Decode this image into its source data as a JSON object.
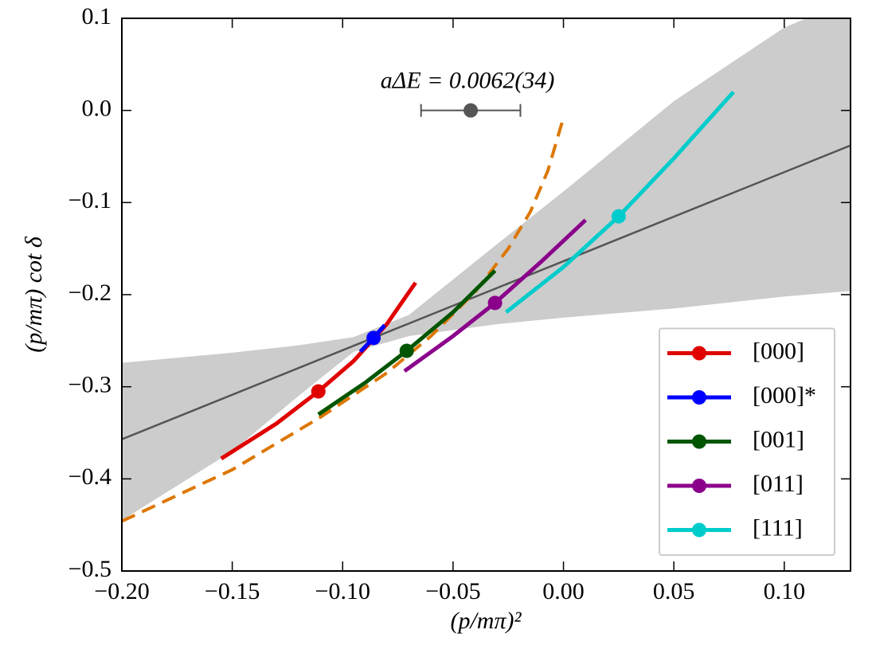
{
  "chart_data": {
    "type": "line",
    "xlabel": "(p/mπ)²",
    "ylabel": "(p/mπ) cot δ",
    "xlim": [
      -0.2,
      0.13
    ],
    "ylim": [
      -0.5,
      0.1
    ],
    "xticks": [
      {
        "value": -0.2,
        "label": "−0.20"
      },
      {
        "value": -0.15,
        "label": "−0.15"
      },
      {
        "value": -0.1,
        "label": "−0.10"
      },
      {
        "value": -0.05,
        "label": "−0.05"
      },
      {
        "value": 0,
        "label": "0.00"
      },
      {
        "value": 0.05,
        "label": "0.05"
      },
      {
        "value": 0.1,
        "label": "0.10"
      }
    ],
    "yticks": [
      {
        "value": -0.5,
        "label": "−0.5"
      },
      {
        "value": -0.4,
        "label": "−0.4"
      },
      {
        "value": -0.3,
        "label": "−0.3"
      },
      {
        "value": -0.2,
        "label": "−0.2"
      },
      {
        "value": -0.1,
        "label": "−0.1"
      },
      {
        "value": 0,
        "label": "0.0"
      },
      0.1
    ],
    "legend": "lower right",
    "band": {
      "color": "#cccccc",
      "x": [
        -0.2,
        -0.15,
        -0.12,
        -0.095,
        -0.07,
        -0.03,
        0,
        0.05,
        0.1,
        0.13
      ],
      "upper": [
        -0.274,
        -0.263,
        -0.255,
        -0.246,
        -0.222,
        -0.145,
        -0.088,
        0.01,
        0.09,
        0.12
      ],
      "lower": [
        -0.445,
        -0.37,
        -0.31,
        -0.262,
        -0.245,
        -0.232,
        -0.225,
        -0.215,
        -0.202,
        -0.196
      ]
    },
    "fit_line": {
      "color": "#555555",
      "x": [
        -0.2,
        0.13
      ],
      "values": [
        -0.357,
        -0.038
      ]
    },
    "dashed": {
      "color": "#dd7700",
      "x": [
        -0.2,
        -0.15,
        -0.11,
        -0.08,
        -0.06,
        -0.04,
        -0.025,
        -0.015,
        -0.007,
        0.0
      ],
      "values": [
        -0.446,
        -0.39,
        -0.333,
        -0.285,
        -0.245,
        -0.197,
        -0.15,
        -0.11,
        -0.065,
        -0.008
      ]
    },
    "series": [
      {
        "name": "[000]",
        "color": "#e00000",
        "x": [
          -0.155,
          -0.13,
          -0.111,
          -0.095,
          -0.08,
          -0.067
        ],
        "values": [
          -0.378,
          -0.34,
          -0.305,
          -0.272,
          -0.232,
          -0.187
        ],
        "marker": {
          "x": -0.111,
          "y": -0.305
        }
      },
      {
        "name": "[000]*",
        "color": "#0000ff",
        "x": [
          -0.092,
          -0.086,
          -0.081
        ],
        "values": [
          -0.262,
          -0.247,
          -0.233
        ],
        "marker": {
          "x": -0.086,
          "y": -0.247
        }
      },
      {
        "name": "[001]",
        "color": "#005500",
        "x": [
          -0.111,
          -0.09,
          -0.071,
          -0.05,
          -0.031
        ],
        "values": [
          -0.33,
          -0.296,
          -0.261,
          -0.219,
          -0.174
        ],
        "marker": {
          "x": -0.071,
          "y": -0.261
        }
      },
      {
        "name": "[011]",
        "color": "#8b008b",
        "x": [
          -0.072,
          -0.05,
          -0.031,
          -0.01,
          0.01
        ],
        "values": [
          -0.283,
          -0.245,
          -0.209,
          -0.164,
          -0.119
        ],
        "marker": {
          "x": -0.031,
          "y": -0.209
        }
      },
      {
        "name": "[111]",
        "color": "#00cccc",
        "x": [
          -0.026,
          0,
          0.025,
          0.05,
          0.077
        ],
        "values": [
          -0.219,
          -0.17,
          -0.115,
          -0.052,
          0.02
        ],
        "marker": {
          "x": 0.025,
          "y": -0.115
        }
      }
    ],
    "annotation": {
      "text": "aΔE = 0.0062(34)",
      "x": -0.042,
      "y": 0,
      "xerr": 0.0225,
      "color": "#555555"
    }
  }
}
